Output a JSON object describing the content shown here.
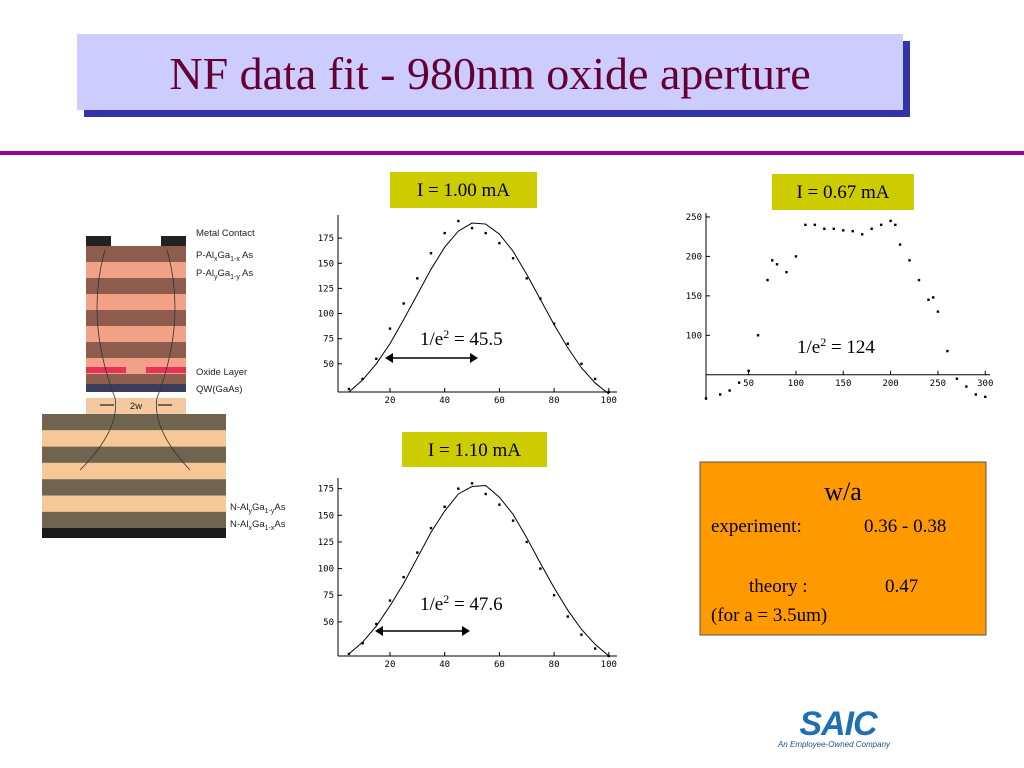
{
  "title": "NF data fit - 980nm oxide aperture",
  "diagram": {
    "labels": [
      {
        "parts": [
          "Metal Contact"
        ]
      },
      {
        "parts": [
          "P-Al",
          "x",
          "Ga",
          "1-x",
          " As"
        ]
      },
      {
        "parts": [
          "P-Al",
          "y",
          "Ga",
          "1-y",
          " As"
        ]
      },
      {
        "parts": [
          "Oxide Layer"
        ]
      },
      {
        "parts": [
          "QW(GaAs)"
        ]
      },
      {
        "parts": [
          "N-Al",
          "y",
          "Ga",
          "1-y",
          "As"
        ]
      },
      {
        "parts": [
          "N-Al",
          "x",
          "Ga",
          "1-x",
          "As"
        ]
      }
    ],
    "width_label": "2w"
  },
  "chart_data": [
    {
      "type": "line",
      "label": "I = 1.00 mA",
      "annotation": {
        "text": "1/e",
        "sup": "2",
        "rest": " = 45.5"
      },
      "x": [
        5,
        10,
        15,
        20,
        25,
        30,
        35,
        40,
        45,
        50,
        55,
        60,
        65,
        70,
        75,
        80,
        85,
        90,
        95,
        100
      ],
      "xlim": [
        1,
        103
      ],
      "xticks": [
        20,
        40,
        60,
        80,
        100
      ],
      "ylim": [
        22,
        198
      ],
      "yticks": [
        50,
        75,
        100,
        125,
        150,
        175
      ],
      "series": [
        {
          "style": "points",
          "color": "#000000",
          "values": [
            25,
            35,
            55,
            85,
            110,
            135,
            160,
            180,
            192,
            185,
            180,
            170,
            155,
            135,
            115,
            90,
            70,
            50,
            35,
            22
          ]
        },
        {
          "style": "line",
          "color": "#000000",
          "values": [
            22,
            34,
            50,
            70,
            94,
            119,
            144,
            166,
            182,
            190,
            189,
            179,
            162,
            139,
            114,
            89,
            66,
            46,
            31,
            20
          ]
        }
      ]
    },
    {
      "type": "line",
      "label": "I = 0.67 mA",
      "annotation": {
        "text": "1/e",
        "sup": "2",
        "rest": " = 124"
      },
      "x": [
        5,
        20,
        30,
        40,
        50,
        60,
        70,
        75,
        80,
        90,
        100,
        110,
        120,
        130,
        140,
        150,
        160,
        170,
        180,
        190,
        200,
        205,
        210,
        220,
        230,
        240,
        245,
        250,
        260,
        270,
        280,
        290,
        300
      ],
      "xlim": [
        5,
        305
      ],
      "xticks": [
        50,
        100,
        150,
        200,
        250,
        300
      ],
      "ylim": [
        18,
        255
      ],
      "yticks": [
        100,
        150,
        200,
        250
      ],
      "x_axis_at": 50,
      "series": [
        {
          "style": "points",
          "color": "#000000",
          "values": [
            20,
            25,
            30,
            40,
            55,
            100,
            170,
            195,
            190,
            180,
            200,
            240,
            240,
            235,
            235,
            233,
            232,
            228,
            235,
            240,
            245,
            240,
            215,
            195,
            170,
            145,
            148,
            130,
            80,
            45,
            35,
            25,
            22
          ]
        }
      ]
    },
    {
      "type": "line",
      "label": "I = 1.10 mA",
      "annotation": {
        "text": "1/e",
        "sup": "2",
        "rest": " = 47.6"
      },
      "x": [
        5,
        10,
        15,
        20,
        25,
        30,
        35,
        40,
        45,
        50,
        55,
        60,
        65,
        70,
        75,
        80,
        85,
        90,
        95,
        100
      ],
      "xlim": [
        1,
        103
      ],
      "xticks": [
        20,
        40,
        60,
        80,
        100
      ],
      "ylim": [
        18,
        185
      ],
      "yticks": [
        50,
        75,
        100,
        125,
        150,
        175
      ],
      "series": [
        {
          "style": "points",
          "color": "#000000",
          "values": [
            20,
            30,
            48,
            70,
            92,
            115,
            138,
            158,
            175,
            180,
            170,
            160,
            145,
            125,
            100,
            75,
            55,
            38,
            25,
            18
          ]
        },
        {
          "style": "line",
          "color": "#000000",
          "values": [
            20,
            31,
            46,
            65,
            86,
            110,
            134,
            154,
            170,
            177,
            178,
            167,
            151,
            129,
            105,
            82,
            61,
            43,
            29,
            18
          ]
        }
      ]
    }
  ],
  "box": {
    "heading": "w/a",
    "rows": [
      [
        "experiment:",
        "0.36 - 0.38"
      ],
      [
        "theory :",
        "0.47"
      ]
    ],
    "note": "(for a = 3.5um)"
  },
  "logo": {
    "name": "SAIC",
    "tagline": "An Employee-Owned Company"
  }
}
